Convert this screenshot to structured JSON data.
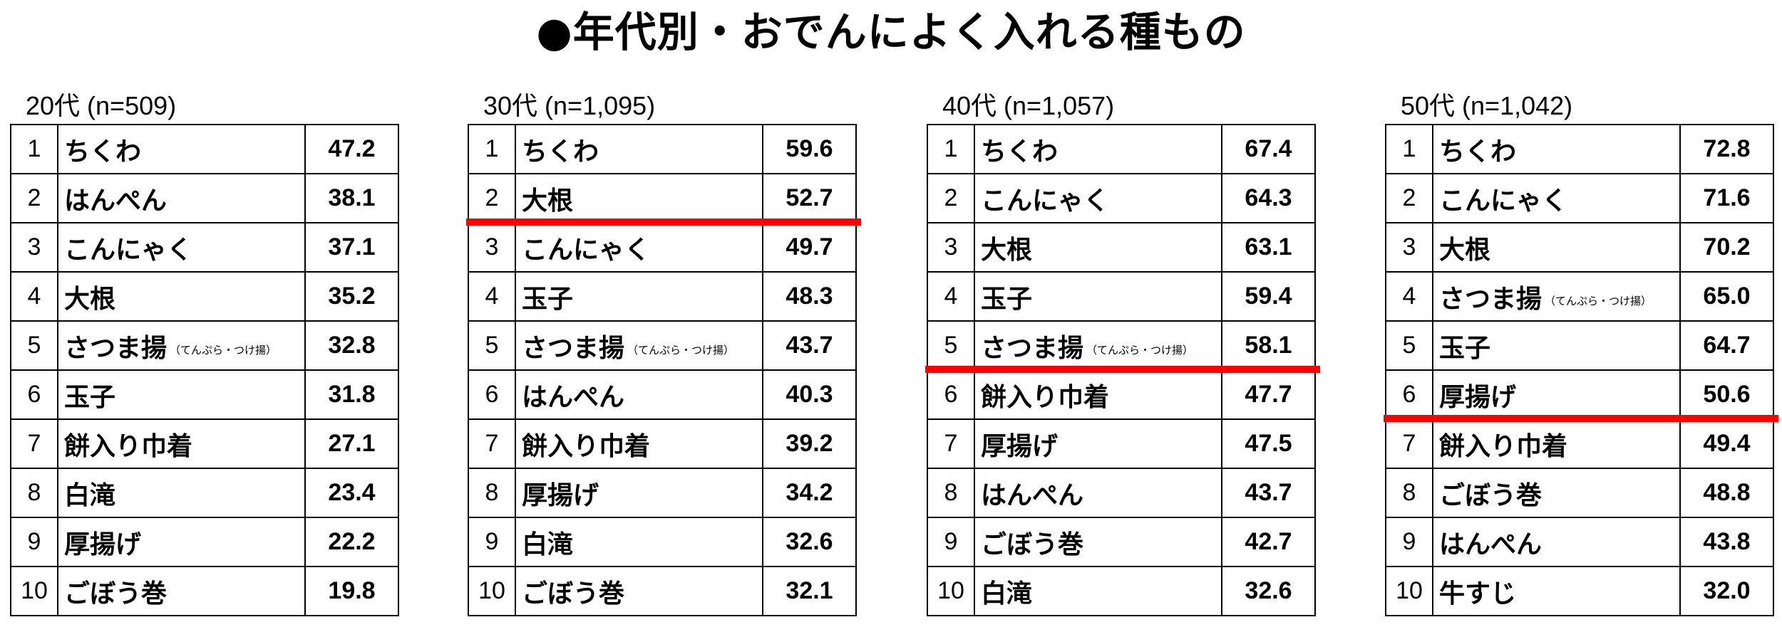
{
  "title": "●年代別・おでんによく入れる種もの",
  "chart_data": [
    {
      "type": "table",
      "label": "20代 (n=509)",
      "ranks": [
        "1",
        "2",
        "3",
        "4",
        "5",
        "6",
        "7",
        "8",
        "9",
        "10"
      ],
      "items": [
        "ちくわ",
        "はんぺん",
        "こんにゃく",
        "大根",
        "さつま揚",
        "玉子",
        "餅入り巾着",
        "白滝",
        "厚揚げ",
        "ごぼう巻"
      ],
      "notes": [
        "",
        "",
        "",
        "",
        "（てんぷら・つけ揚）",
        "",
        "",
        "",
        "",
        ""
      ],
      "values": [
        "47.2",
        "38.1",
        "37.1",
        "35.2",
        "32.8",
        "31.8",
        "27.1",
        "23.4",
        "22.2",
        "19.8"
      ],
      "highlight_after_rank": null
    },
    {
      "type": "table",
      "label": "30代 (n=1,095)",
      "ranks": [
        "1",
        "2",
        "3",
        "4",
        "5",
        "6",
        "7",
        "8",
        "9",
        "10"
      ],
      "items": [
        "ちくわ",
        "大根",
        "こんにゃく",
        "玉子",
        "さつま揚",
        "はんぺん",
        "餅入り巾着",
        "厚揚げ",
        "白滝",
        "ごぼう巻"
      ],
      "notes": [
        "",
        "",
        "",
        "",
        "（てんぷら・つけ揚）",
        "",
        "",
        "",
        "",
        ""
      ],
      "values": [
        "59.6",
        "52.7",
        "49.7",
        "48.3",
        "43.7",
        "40.3",
        "39.2",
        "34.2",
        "32.6",
        "32.1"
      ],
      "highlight_after_rank": 2
    },
    {
      "type": "table",
      "label": "40代 (n=1,057)",
      "ranks": [
        "1",
        "2",
        "3",
        "4",
        "5",
        "6",
        "7",
        "8",
        "9",
        "10"
      ],
      "items": [
        "ちくわ",
        "こんにゃく",
        "大根",
        "玉子",
        "さつま揚",
        "餅入り巾着",
        "厚揚げ",
        "はんぺん",
        "ごぼう巻",
        "白滝"
      ],
      "notes": [
        "",
        "",
        "",
        "",
        "（てんぷら・つけ揚）",
        "",
        "",
        "",
        "",
        ""
      ],
      "values": [
        "67.4",
        "64.3",
        "63.1",
        "59.4",
        "58.1",
        "47.7",
        "47.5",
        "43.7",
        "42.7",
        "32.6"
      ],
      "highlight_after_rank": 5
    },
    {
      "type": "table",
      "label": "50代 (n=1,042)",
      "ranks": [
        "1",
        "2",
        "3",
        "4",
        "5",
        "6",
        "7",
        "8",
        "9",
        "10"
      ],
      "items": [
        "ちくわ",
        "こんにゃく",
        "大根",
        "さつま揚",
        "玉子",
        "厚揚げ",
        "餅入り巾着",
        "ごぼう巻",
        "はんぺん",
        "牛すじ"
      ],
      "notes": [
        "",
        "",
        "",
        "（てんぷら・つけ揚）",
        "",
        "",
        "",
        "",
        "",
        ""
      ],
      "values": [
        "72.8",
        "71.6",
        "70.2",
        "65.0",
        "64.7",
        "50.6",
        "49.4",
        "48.8",
        "43.8",
        "32.0"
      ],
      "highlight_after_rank": 6
    }
  ],
  "colors": {
    "highlight": "#ff0000",
    "border": "#000000"
  }
}
